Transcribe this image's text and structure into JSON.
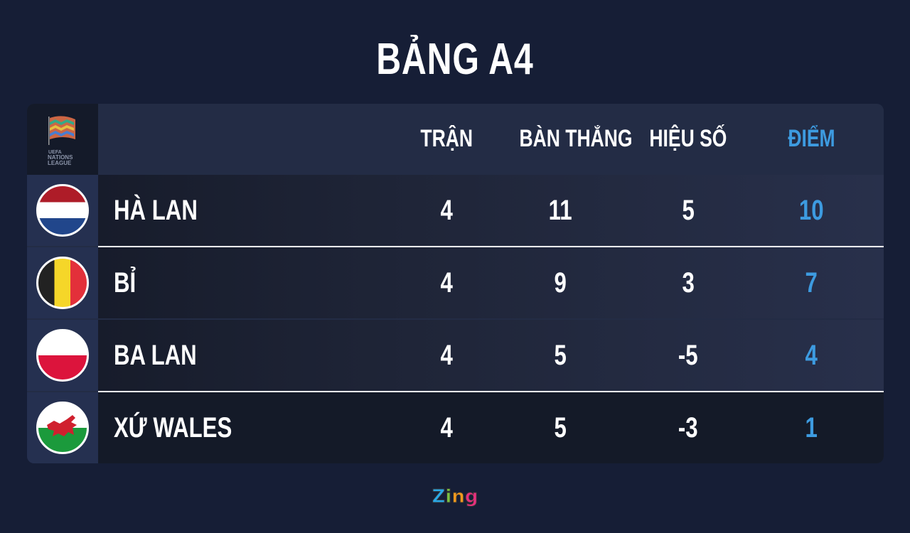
{
  "title": "BẢNG A4",
  "logo_text": "UEFA NATIONS LEAGUE",
  "headers": {
    "played": "TRẬN",
    "goals": "BÀN THẮNG",
    "diff": "HIỆU SỐ",
    "points": "ĐIỂM"
  },
  "rows": [
    {
      "team": "HÀ LAN",
      "flag": "netherlands",
      "played": "4",
      "goals": "11",
      "diff": "5",
      "points": "10"
    },
    {
      "team": "BỈ",
      "flag": "belgium",
      "played": "4",
      "goals": "9",
      "diff": "3",
      "points": "7"
    },
    {
      "team": "BA LAN",
      "flag": "poland",
      "played": "4",
      "goals": "5",
      "diff": "-5",
      "points": "4"
    },
    {
      "team": "XỨ WALES",
      "flag": "wales",
      "played": "4",
      "goals": "5",
      "diff": "-3",
      "points": "1"
    }
  ],
  "brand": "Zing",
  "colors": {
    "points": "#3d9be0",
    "background": "#161e36"
  }
}
